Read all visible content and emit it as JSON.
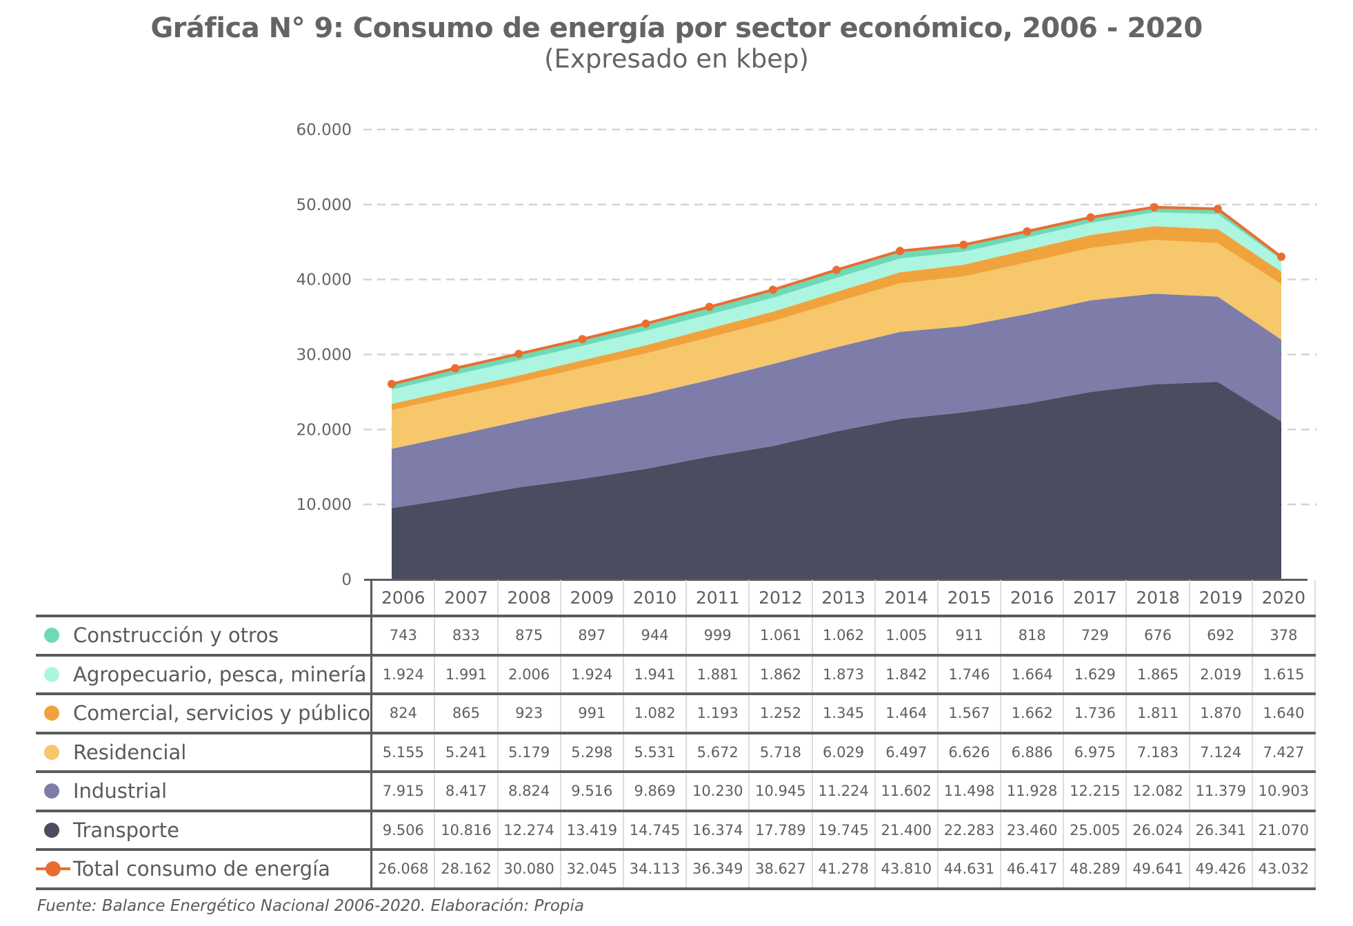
{
  "title": "Gráfica N° 9: Consumo de energía por sector económico, 2006 - 2020",
  "subtitle": "(Expresado en kbep)",
  "footer": "Fuente: Balance Energético Nacional 2006-2020. Elaboración: Propia",
  "chart_data": {
    "type": "area",
    "stacked": true,
    "title": "Gráfica N° 9: Consumo de energía por sector económico, 2006 - 2020",
    "subtitle": "(Expresado en kbep)",
    "xlabel": "",
    "ylabel": "",
    "ylim": [
      0,
      60000
    ],
    "yticks": [
      0,
      10000,
      20000,
      30000,
      40000,
      50000,
      60000
    ],
    "ytick_labels": [
      "0",
      "10.000",
      "20.000",
      "30.000",
      "40.000",
      "50.000",
      "60.000"
    ],
    "grid": true,
    "legend_placement": "table-left",
    "categories": [
      "2006",
      "2007",
      "2008",
      "2009",
      "2010",
      "2011",
      "2012",
      "2013",
      "2014",
      "2015",
      "2016",
      "2017",
      "2018",
      "2019",
      "2020"
    ],
    "series": [
      {
        "name": "Construcción y otros",
        "color": "#6fd9b5",
        "kind": "area",
        "values": [
          743,
          833,
          875,
          897,
          944,
          999,
          1061,
          1062,
          1005,
          911,
          818,
          729,
          676,
          692,
          378
        ],
        "labels": [
          "743",
          "833",
          "875",
          "897",
          "944",
          "999",
          "1.061",
          "1.062",
          "1.005",
          "911",
          "818",
          "729",
          "676",
          "692",
          "378"
        ]
      },
      {
        "name": "Agropecuario, pesca, minería",
        "color": "#abf5e1",
        "kind": "area",
        "values": [
          1924,
          1991,
          2006,
          1924,
          1941,
          1881,
          1862,
          1873,
          1842,
          1746,
          1664,
          1629,
          1865,
          2019,
          1615
        ],
        "labels": [
          "1.924",
          "1.991",
          "2.006",
          "1.924",
          "1.941",
          "1.881",
          "1.862",
          "1.873",
          "1.842",
          "1.746",
          "1.664",
          "1.629",
          "1.865",
          "2.019",
          "1.615"
        ]
      },
      {
        "name": "Comercial, servicios y público",
        "color": "#f0a33c",
        "kind": "area",
        "values": [
          824,
          865,
          923,
          991,
          1082,
          1193,
          1252,
          1345,
          1464,
          1567,
          1662,
          1736,
          1811,
          1870,
          1640
        ],
        "labels": [
          "824",
          "865",
          "923",
          "991",
          "1.082",
          "1.193",
          "1.252",
          "1.345",
          "1.464",
          "1.567",
          "1.662",
          "1.736",
          "1.811",
          "1.870",
          "1.640"
        ]
      },
      {
        "name": "Residencial",
        "color": "#f6c76b",
        "kind": "area",
        "values": [
          5155,
          5241,
          5179,
          5298,
          5531,
          5672,
          5718,
          6029,
          6497,
          6626,
          6886,
          6975,
          7183,
          7124,
          7427
        ],
        "labels": [
          "5.155",
          "5.241",
          "5.179",
          "5.298",
          "5.531",
          "5.672",
          "5.718",
          "6.029",
          "6.497",
          "6.626",
          "6.886",
          "6.975",
          "7.183",
          "7.124",
          "7.427"
        ]
      },
      {
        "name": "Industrial",
        "color": "#7e7ca8",
        "kind": "area",
        "values": [
          7915,
          8417,
          8824,
          9516,
          9869,
          10230,
          10945,
          11224,
          11602,
          11498,
          11928,
          12215,
          12082,
          11379,
          10903
        ],
        "labels": [
          "7.915",
          "8.417",
          "8.824",
          "9.516",
          "9.869",
          "10.230",
          "10.945",
          "11.224",
          "11.602",
          "11.498",
          "11.928",
          "12.215",
          "12.082",
          "11.379",
          "10.903"
        ]
      },
      {
        "name": "Transporte",
        "color": "#4a4c5f",
        "kind": "area",
        "values": [
          9506,
          10816,
          12274,
          13419,
          14745,
          16374,
          17789,
          19745,
          21400,
          22283,
          23460,
          25005,
          26024,
          26341,
          21070
        ],
        "labels": [
          "9.506",
          "10.816",
          "12.274",
          "13.419",
          "14.745",
          "16.374",
          "17.789",
          "19.745",
          "21.400",
          "22.283",
          "23.460",
          "25.005",
          "26.024",
          "26.341",
          "21.070"
        ]
      },
      {
        "name": "Total consumo de energía",
        "color": "#ea6d2f",
        "kind": "line",
        "values": [
          26068,
          28162,
          30080,
          32045,
          34113,
          36349,
          38627,
          41278,
          43810,
          44631,
          46417,
          48289,
          49641,
          49426,
          43032
        ],
        "labels": [
          "26.068",
          "28.162",
          "30.080",
          "32.045",
          "34.113",
          "36.349",
          "38.627",
          "41.278",
          "43.810",
          "44.631",
          "46.417",
          "48.289",
          "49.641",
          "49.426",
          "43.032"
        ]
      }
    ],
    "stack_order_bottom_to_top": [
      "Transporte",
      "Industrial",
      "Residencial",
      "Comercial, servicios y público",
      "Agropecuario, pesca, minería",
      "Construcción y otros"
    ]
  }
}
